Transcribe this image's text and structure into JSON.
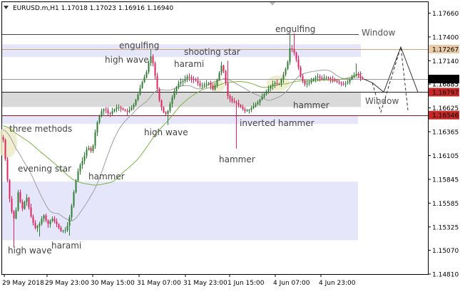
{
  "title": "EURUSD.m,H1  1.17018 1.17023 1.16916 1.16940",
  "chart_data": {
    "type": "candlestick",
    "symbol": "EURUSD.m",
    "timeframe": "H1",
    "ohlc": {
      "open": 1.17018,
      "high": 1.17023,
      "low": 1.16916,
      "close": 1.1694
    },
    "x_tick_labels": [
      "29 May 2018",
      "29 May 23:00",
      "30 May 15:00",
      "31 May 07:00",
      "31 May 23:00",
      "1 Jun 15:00",
      "4 Jun 07:00",
      "4 Jun 23:00"
    ],
    "y_tick_labels": [
      "1.17660",
      "1.17400",
      "1.17140",
      "1.16885",
      "1.16625",
      "1.16365",
      "1.16105",
      "1.15845",
      "1.15585",
      "1.15325",
      "1.15070",
      "1.14810"
    ],
    "ylim": [
      1.1481,
      1.1778
    ],
    "price_badges": [
      {
        "label": "1.17267",
        "value": 1.17267,
        "color": "#e9c9a6"
      },
      {
        "label": "1.16940",
        "value": 1.1694,
        "color": "#000000"
      },
      {
        "label": "1.16885",
        "value": 1.16885,
        "color": null
      },
      {
        "label": "1.16797",
        "value": 1.16797,
        "color": "#c62828"
      },
      {
        "label": "1.16546",
        "value": 1.16546,
        "color": "#c62828"
      }
    ],
    "zones": [
      {
        "low": 1.1718,
        "high": 1.1732,
        "color": "#e6e6fb"
      },
      {
        "low": 1.16635,
        "high": 1.168,
        "color": "#d9d9d9"
      },
      {
        "low": 1.1645,
        "high": 1.16546,
        "color": "#e6e6fb"
      },
      {
        "low": 1.1518,
        "high": 1.1582,
        "color": "#e6e6fb"
      }
    ],
    "horizontal_lines": [
      {
        "value": 1.1743,
        "color": "#444444"
      },
      {
        "value": 1.17267,
        "color": "#c9a27a"
      },
      {
        "value": 1.1694,
        "color": "#999999"
      },
      {
        "value": 1.16797,
        "color": "#222222"
      },
      {
        "value": 1.16546,
        "color": "#8b1a1a"
      }
    ],
    "annotations": [
      "engulfing",
      "high wave",
      "harami",
      "shooting star",
      "engulfing",
      "three methods",
      "evening star",
      "hammer",
      "high wave",
      "hammer",
      "inverted hammer",
      "hammer",
      "high wave",
      "harami"
    ],
    "window_labels": [
      "Window",
      "Window"
    ],
    "colors": {
      "bull": "#2e7d32",
      "bear": "#e0245e",
      "ma_fast": "#9e9e9e",
      "ma_slow": "#7cb342"
    }
  }
}
